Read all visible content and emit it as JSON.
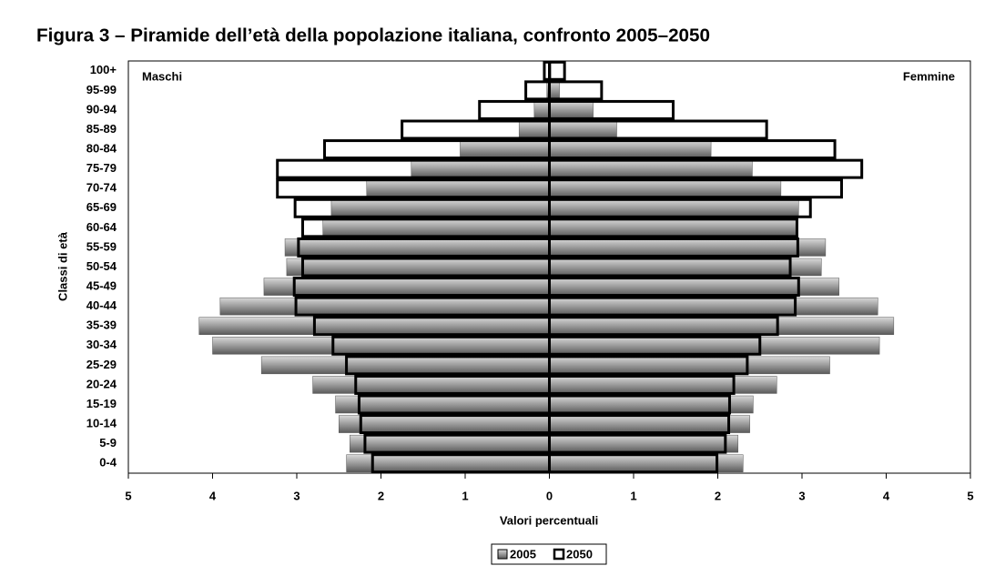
{
  "chart_data": {
    "type": "pyramid",
    "title": "Figura 3 – Piramide dell’età della popolazione italiana, confronto 2005–2050",
    "x_label": "Valori percentuali",
    "y_label": "Classi di età",
    "annotations": [
      "Maschi",
      "Femmine"
    ],
    "categories": [
      "0-4",
      "5-9",
      "10-14",
      "15-19",
      "20-24",
      "25-29",
      "30-34",
      "35-39",
      "40-44",
      "45-49",
      "50-54",
      "55-59",
      "60-64",
      "65-69",
      "70-74",
      "75-79",
      "80-84",
      "85-89",
      "90-94",
      "95-99",
      "100+"
    ],
    "series": [
      {
        "name": "2005",
        "color": "#8c8c8c",
        "left": [
          -2.41,
          -2.37,
          -2.5,
          -2.54,
          -2.81,
          -3.42,
          -4.0,
          -4.16,
          -3.91,
          -3.39,
          -3.12,
          -3.14,
          -2.69,
          -2.59,
          -2.17,
          -1.64,
          -1.06,
          -0.36,
          -0.18,
          -0.03,
          -0.01
        ],
        "right": [
          2.3,
          2.24,
          2.38,
          2.42,
          2.7,
          3.33,
          3.92,
          4.09,
          3.9,
          3.44,
          3.23,
          3.28,
          2.95,
          2.96,
          2.75,
          2.41,
          1.92,
          0.8,
          0.52,
          0.12,
          0.02
        ]
      },
      {
        "name": "2050",
        "color": "#000000",
        "left": [
          -2.1,
          -2.19,
          -2.24,
          -2.26,
          -2.3,
          -2.41,
          -2.57,
          -2.79,
          -3.01,
          -3.03,
          -2.93,
          -2.98,
          -2.93,
          -3.02,
          -3.23,
          -3.23,
          -2.67,
          -1.75,
          -0.83,
          -0.28,
          -0.06
        ],
        "right": [
          1.99,
          2.09,
          2.13,
          2.14,
          2.19,
          2.35,
          2.5,
          2.71,
          2.92,
          2.96,
          2.86,
          2.95,
          2.94,
          3.1,
          3.47,
          3.71,
          3.39,
          2.58,
          1.47,
          0.62,
          0.18
        ]
      }
    ],
    "xlim": [
      -5,
      5
    ],
    "xticks": [
      {
        "value": -5,
        "label": "5"
      },
      {
        "value": -4,
        "label": "4"
      },
      {
        "value": -3,
        "label": "3"
      },
      {
        "value": -2,
        "label": "2"
      },
      {
        "value": -1,
        "label": "1"
      },
      0,
      1,
      2,
      3,
      4,
      5
    ]
  }
}
